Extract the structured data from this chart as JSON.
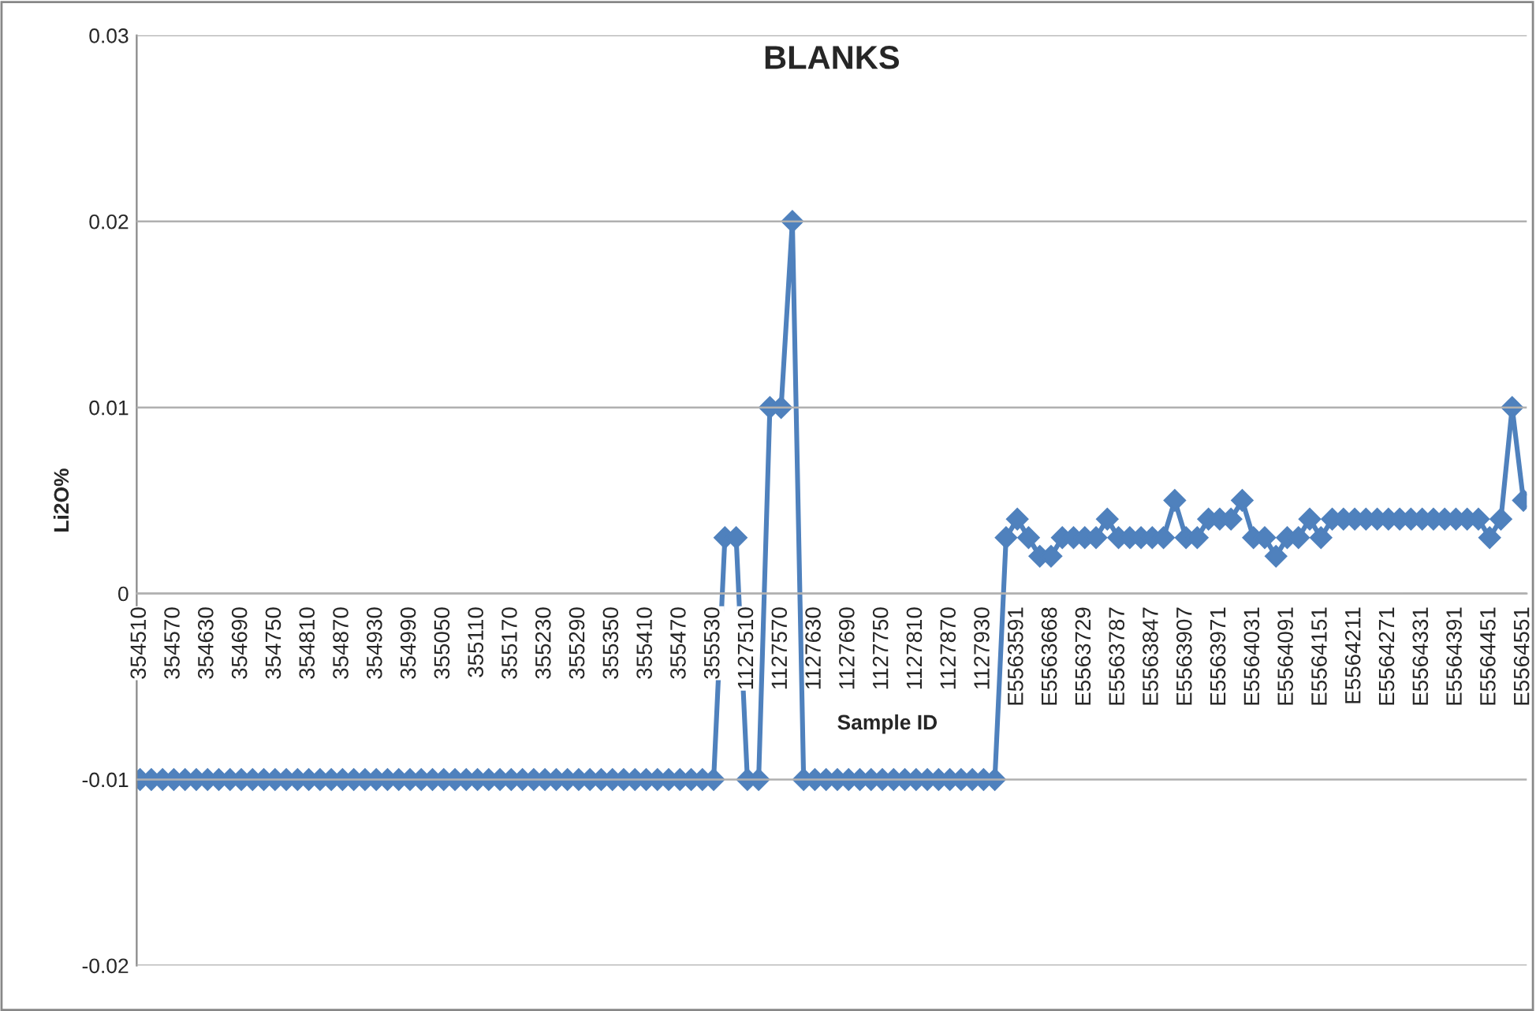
{
  "chart_data": {
    "type": "line",
    "title": "BLANKS",
    "xlabel": "Sample ID",
    "ylabel": "Li2O%",
    "categories": [
      "354510",
      null,
      null,
      "354570",
      null,
      null,
      "354630",
      null,
      null,
      "354690",
      null,
      null,
      "354750",
      null,
      null,
      "354810",
      null,
      null,
      "354870",
      null,
      null,
      "354930",
      null,
      null,
      "354990",
      null,
      null,
      "355050",
      null,
      null,
      "355110",
      null,
      null,
      "355170",
      null,
      null,
      "355230",
      null,
      null,
      "355290",
      null,
      null,
      "355350",
      null,
      null,
      "355410",
      null,
      null,
      "355470",
      null,
      null,
      "355530",
      null,
      null,
      "1127510",
      null,
      null,
      "1127570",
      null,
      null,
      "1127630",
      null,
      null,
      "1127690",
      null,
      null,
      "1127750",
      null,
      null,
      "1127810",
      null,
      null,
      "1127870",
      null,
      null,
      "1127930",
      null,
      null,
      "E5563591",
      null,
      null,
      "E5563668",
      null,
      null,
      "E5563729",
      null,
      null,
      "E5563787",
      null,
      null,
      "E5563847",
      null,
      null,
      "E5563907",
      null,
      null,
      "E5563971",
      null,
      null,
      "E5564031",
      null,
      null,
      "E5564091",
      null,
      null,
      "E5564151",
      null,
      null,
      "E5564211",
      null,
      null,
      "E5564271",
      null,
      null,
      "E5564331",
      null,
      null,
      "E5564391",
      null,
      null,
      "E5564451",
      null,
      null,
      "E5564551"
    ],
    "series": [
      {
        "color": "#4f81bd",
        "values": [
          -0.01,
          -0.01,
          -0.01,
          -0.01,
          -0.01,
          -0.01,
          -0.01,
          -0.01,
          -0.01,
          -0.01,
          -0.01,
          -0.01,
          -0.01,
          -0.01,
          -0.01,
          -0.01,
          -0.01,
          -0.01,
          -0.01,
          -0.01,
          -0.01,
          -0.01,
          -0.01,
          -0.01,
          -0.01,
          -0.01,
          -0.01,
          -0.01,
          -0.01,
          -0.01,
          -0.01,
          -0.01,
          -0.01,
          -0.01,
          -0.01,
          -0.01,
          -0.01,
          -0.01,
          -0.01,
          -0.01,
          -0.01,
          -0.01,
          -0.01,
          -0.01,
          -0.01,
          -0.01,
          -0.01,
          -0.01,
          -0.01,
          -0.01,
          -0.01,
          -0.01,
          0.003,
          0.003,
          -0.01,
          -0.01,
          0.01,
          0.01,
          0.02,
          -0.01,
          -0.01,
          -0.01,
          -0.01,
          -0.01,
          -0.01,
          -0.01,
          -0.01,
          -0.01,
          -0.01,
          -0.01,
          -0.01,
          -0.01,
          -0.01,
          -0.01,
          -0.01,
          -0.01,
          -0.01,
          0.003,
          0.004,
          0.003,
          0.002,
          0.002,
          0.003,
          0.003,
          0.003,
          0.003,
          0.004,
          0.003,
          0.003,
          0.003,
          0.003,
          0.003,
          0.005,
          0.003,
          0.003,
          0.004,
          0.004,
          0.004,
          0.005,
          0.003,
          0.003,
          0.002,
          0.003,
          0.003,
          0.004,
          0.003,
          0.004,
          0.004,
          0.004,
          0.004,
          0.004,
          0.004,
          0.004,
          0.004,
          0.004,
          0.004,
          0.004,
          0.004,
          0.004,
          0.004,
          0.003,
          0.004,
          0.01,
          0.005
        ]
      }
    ],
    "ylim": [
      -0.02,
      0.03
    ],
    "yticks": [
      -0.02,
      -0.01,
      0,
      0.01,
      0.02,
      0.03
    ],
    "grid": "y",
    "marker": "diamond",
    "line_style": "solid",
    "legend": false
  }
}
